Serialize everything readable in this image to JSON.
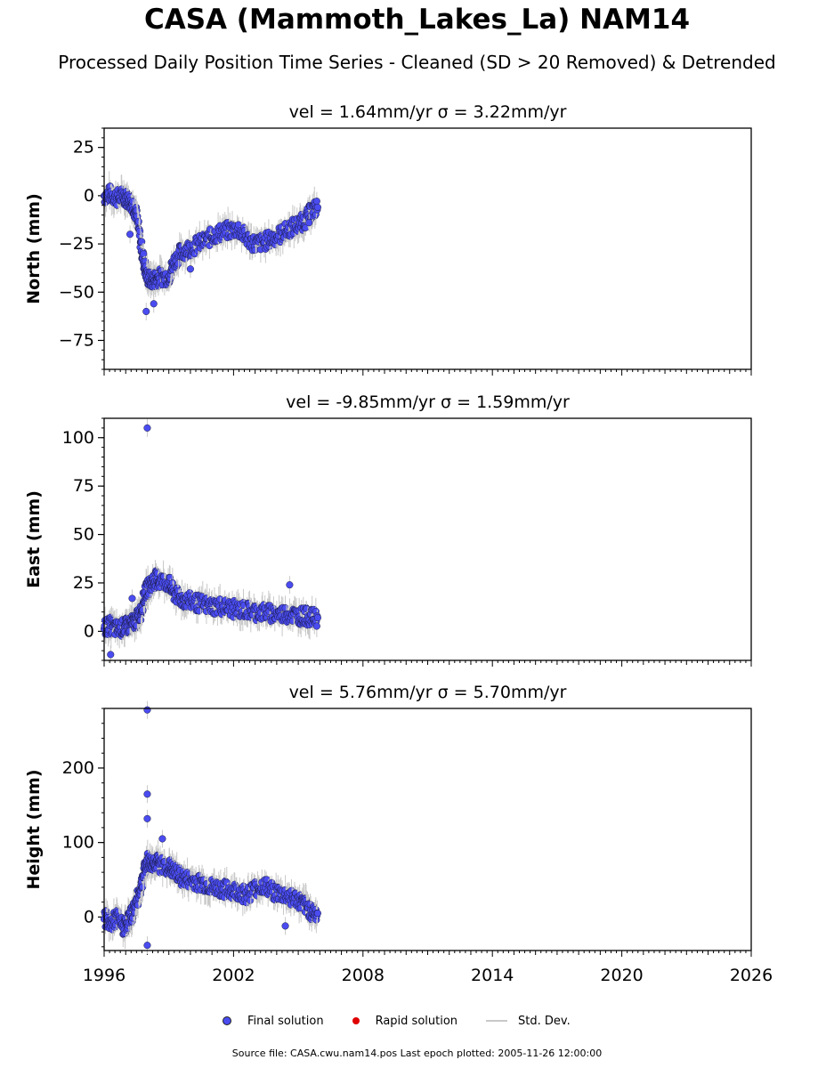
{
  "figure": {
    "title": "CASA (Mammoth_Lakes_La) NAM14",
    "subtitle": "Processed Daily Position Time Series - Cleaned (SD > 20 Removed) & Detrended",
    "source": "Source file: CASA.cwu.nam14.pos  Last epoch plotted: 2005-11-26 12:00:00"
  },
  "legend": [
    {
      "label": "Final solution",
      "color": "#4a4cf0",
      "kind": "dot"
    },
    {
      "label": "Rapid solution",
      "color": "#e00000",
      "kind": "dot"
    },
    {
      "label": "Std. Dev.",
      "color": "#c8c8c8",
      "kind": "line"
    }
  ],
  "chart_data": [
    {
      "type": "scatter",
      "title": "vel = 1.64mm/yr   σ = 3.22mm/yr",
      "ylabel": "North (mm)",
      "xlim": [
        1996,
        2026
      ],
      "ylim": [
        -90,
        35
      ],
      "yticks": [
        25,
        0,
        -25,
        -50,
        -75
      ],
      "ytick_labels": [
        "25",
        "0",
        "−25",
        "−50",
        "−75"
      ],
      "series": [
        {
          "name": "Final solution",
          "color": "#4a4cf0",
          "x": [
            1996.0,
            1996.3,
            1996.6,
            1996.9,
            1997.1,
            1997.3,
            1997.5,
            1997.7,
            1997.85,
            1998.0,
            1998.2,
            1998.4,
            1998.6,
            1999.0,
            1999.2,
            1999.5,
            1999.8,
            2000.2,
            2000.6,
            2001.0,
            2001.4,
            2001.8,
            2002.2,
            2002.6,
            2003.0,
            2003.4,
            2003.8,
            2004.2,
            2004.6,
            2005.0,
            2005.3,
            2005.6,
            2005.9
          ],
          "y": [
            0,
            1,
            -1,
            0,
            -2,
            -4,
            -10,
            -25,
            -35,
            -42,
            -44,
            -43,
            -42,
            -42,
            -35,
            -30,
            -28,
            -26,
            -24,
            -21,
            -19,
            -18,
            -17,
            -22,
            -25,
            -24,
            -22,
            -20,
            -17,
            -15,
            -13,
            -8,
            -6
          ]
        }
      ],
      "outliers_x": [
        1997.2,
        1997.95,
        1998.3,
        2000.0,
        2005.5
      ],
      "outliers_y": [
        -20,
        -60,
        -56,
        -38,
        -14
      ]
    },
    {
      "type": "scatter",
      "title": "vel = -9.85mm/yr   σ = 1.59mm/yr",
      "ylabel": "East (mm)",
      "xlim": [
        1996,
        2026
      ],
      "ylim": [
        -15,
        110
      ],
      "yticks": [
        100,
        75,
        50,
        25,
        0
      ],
      "ytick_labels": [
        "100",
        "75",
        "50",
        "25",
        "0"
      ],
      "series": [
        {
          "name": "Final solution",
          "color": "#4a4cf0",
          "x": [
            1996.0,
            1996.3,
            1996.6,
            1996.9,
            1997.1,
            1997.3,
            1997.5,
            1997.7,
            1997.85,
            1998.0,
            1998.2,
            1998.4,
            1998.6,
            1999.0,
            1999.2,
            1999.5,
            1999.8,
            2000.2,
            2000.6,
            2001.0,
            2001.4,
            2001.8,
            2002.2,
            2002.6,
            2003.0,
            2003.4,
            2003.8,
            2004.2,
            2004.6,
            2005.0,
            2005.3,
            2005.6,
            2005.9
          ],
          "y": [
            2,
            3,
            1,
            2,
            3,
            4,
            6,
            10,
            18,
            22,
            25,
            27,
            26,
            25,
            20,
            17,
            16,
            15,
            14,
            13,
            13,
            12,
            11,
            11,
            10,
            10,
            9,
            9,
            9,
            8,
            8,
            7,
            7
          ]
        }
      ],
      "outliers_x": [
        1998.0,
        1996.3,
        1997.3,
        2004.6
      ],
      "outliers_y": [
        105,
        -12,
        17,
        24
      ]
    },
    {
      "type": "scatter",
      "title": "vel = 5.76mm/yr   σ = 5.70mm/yr",
      "ylabel": "Height (mm)",
      "xlim": [
        1996,
        2026
      ],
      "ylim": [
        -45,
        280
      ],
      "yticks": [
        200,
        100,
        0
      ],
      "ytick_labels": [
        "200",
        "100",
        "0"
      ],
      "xticks": [
        1996,
        2002,
        2008,
        2014,
        2020,
        2026
      ],
      "xtick_labels": [
        "1996",
        "2002",
        "2008",
        "2014",
        "2020",
        "2026"
      ],
      "series": [
        {
          "name": "Final solution",
          "color": "#4a4cf0",
          "x": [
            1996.0,
            1996.3,
            1996.6,
            1996.9,
            1997.1,
            1997.3,
            1997.5,
            1997.7,
            1997.85,
            1998.0,
            1998.2,
            1998.4,
            1998.6,
            1999.0,
            1999.2,
            1999.5,
            1999.8,
            2000.2,
            2000.6,
            2001.0,
            2001.4,
            2001.8,
            2002.2,
            2002.6,
            2003.0,
            2003.4,
            2003.8,
            2004.2,
            2004.6,
            2005.0,
            2005.3,
            2005.6,
            2005.9
          ],
          "y": [
            0,
            -10,
            0,
            -15,
            -5,
            5,
            20,
            40,
            60,
            75,
            72,
            74,
            70,
            68,
            62,
            55,
            50,
            48,
            45,
            40,
            38,
            36,
            34,
            30,
            38,
            42,
            35,
            30,
            28,
            22,
            15,
            8,
            5
          ]
        }
      ],
      "outliers_x": [
        1998.0,
        1998.0,
        1998.0,
        1998.0,
        1998.7,
        2004.4
      ],
      "outliers_y": [
        278,
        165,
        132,
        -38,
        105,
        -12
      ]
    }
  ]
}
